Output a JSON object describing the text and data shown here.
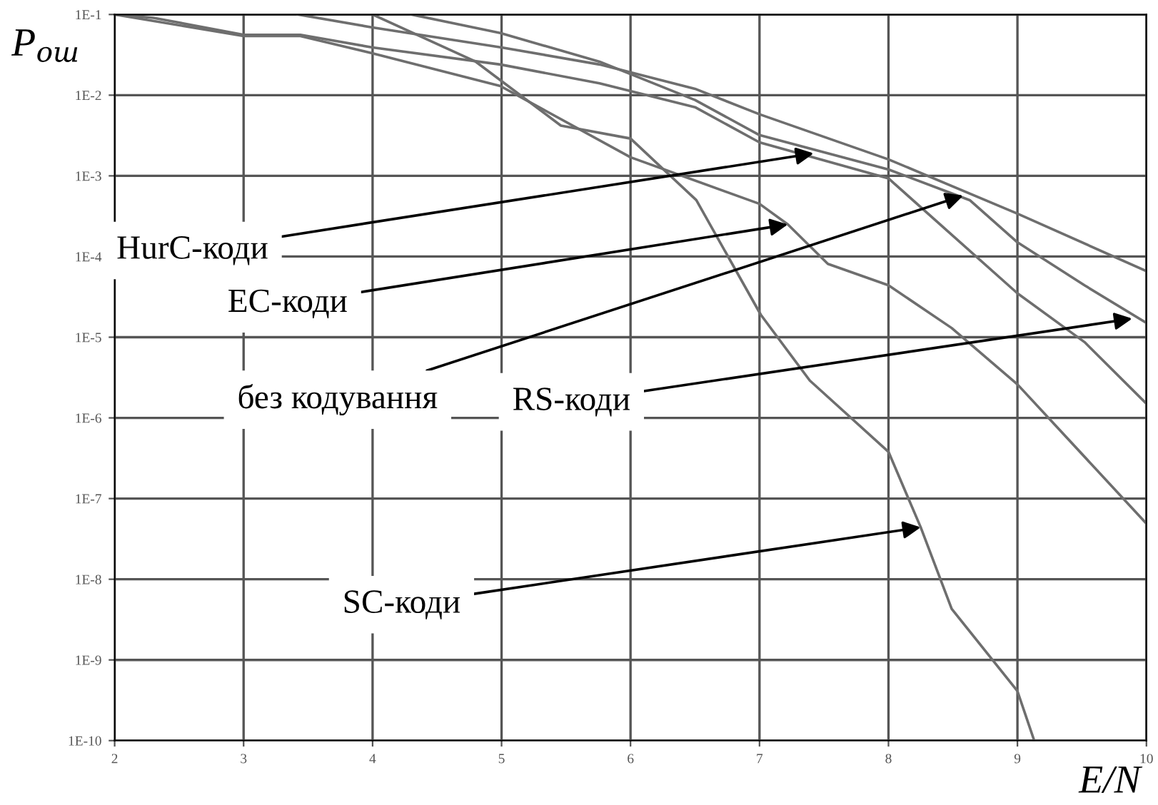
{
  "chart_data": {
    "type": "line",
    "xlabel": "E/N",
    "ylabel": "P$_{ош}$",
    "log": "y",
    "xlim": [
      2,
      10
    ],
    "xticks": [
      2,
      3,
      4,
      5,
      6,
      7,
      8,
      9,
      10
    ],
    "ylim": [
      1e-10,
      0.1
    ],
    "yticks": [
      {
        "value": 1e-10,
        "label": "1E-10"
      },
      {
        "value": 1e-09,
        "label": "1E-9"
      },
      {
        "value": 1e-08,
        "label": "1E-8"
      },
      {
        "value": 1e-07,
        "label": "1E-7"
      },
      {
        "value": 1e-06,
        "label": "1E-6"
      },
      {
        "value": 1e-05,
        "label": "1E-5"
      },
      {
        "value": 0.0001,
        "label": "1E-4"
      },
      {
        "value": 0.001,
        "label": "1E-3"
      },
      {
        "value": 0.01,
        "label": "1E-2"
      },
      {
        "value": 0.1,
        "label": "1E-1"
      }
    ],
    "grid": true,
    "marker": "none",
    "line_style": "solid",
    "series": [
      {
        "color": "#6e6e6e",
        "x": [
          3.42,
          4.0,
          5.0,
          5.76,
          6.5,
          7.0,
          8.0,
          9.0,
          10.0
        ],
        "values": [
          0.1,
          0.069,
          0.039,
          0.024,
          0.012,
          0.0058,
          0.0016,
          0.00034,
          6.6e-05
        ]
      },
      {
        "color": "#6e6e6e",
        "x": [
          4.3,
          4.99,
          5.76,
          6.5,
          7.0,
          8.0,
          8.63,
          9.0,
          9.52,
          10.0
        ],
        "values": [
          0.1,
          0.059,
          0.026,
          0.0087,
          0.0032,
          0.0012,
          0.0005,
          0.00015,
          4.4e-05,
          1.5e-05
        ]
      },
      {
        "color": "#6e6e6e",
        "x": [
          2.0,
          2.3,
          3.0,
          3.44,
          4.0,
          4.99,
          5.76,
          6.5,
          7.0,
          8.0,
          9.0,
          9.52,
          10.0
        ],
        "values": [
          0.1,
          0.091,
          0.056,
          0.056,
          0.039,
          0.024,
          0.014,
          0.0071,
          0.0026,
          0.00093,
          3.5e-05,
          8.7e-06,
          1.5e-06
        ]
      },
      {
        "color": "#6e6e6e",
        "x": [
          2.0,
          3.0,
          3.44,
          4.0,
          4.99,
          6.0,
          7.0,
          7.22,
          7.53,
          8.0,
          8.49,
          9.0,
          10.0
        ],
        "values": [
          0.1,
          0.054,
          0.054,
          0.033,
          0.013,
          0.0017,
          0.00045,
          0.00025,
          8.1e-05,
          4.4e-05,
          1.3e-05,
          2.6e-06,
          4.9e-08
        ]
      },
      {
        "color": "#6e6e6e",
        "x": [
          4.0,
          4.8,
          5.46,
          6.0,
          6.51,
          7.01,
          7.39,
          8.0,
          8.25,
          8.49,
          9.0,
          9.13
        ],
        "values": [
          0.1,
          0.026,
          0.0042,
          0.0029,
          0.0005,
          1.9e-05,
          2.9e-06,
          3.8e-07,
          4.4e-08,
          4.3e-09,
          4.1e-10,
          1e-10
        ]
      }
    ],
    "annotations": [
      {
        "text": "HurC-коди",
        "x": 7.42,
        "y": 0.0019
      },
      {
        "text": "EC-коди",
        "x": 7.22,
        "y": 0.00025
      },
      {
        "text": "без кодування",
        "x": 8.58,
        "y": 0.00057
      },
      {
        "text": "RS-коди",
        "x": 9.89,
        "y": 1.7e-05
      },
      {
        "text": "SC-коди",
        "x": 8.25,
        "y": 4.4e-08
      }
    ]
  }
}
